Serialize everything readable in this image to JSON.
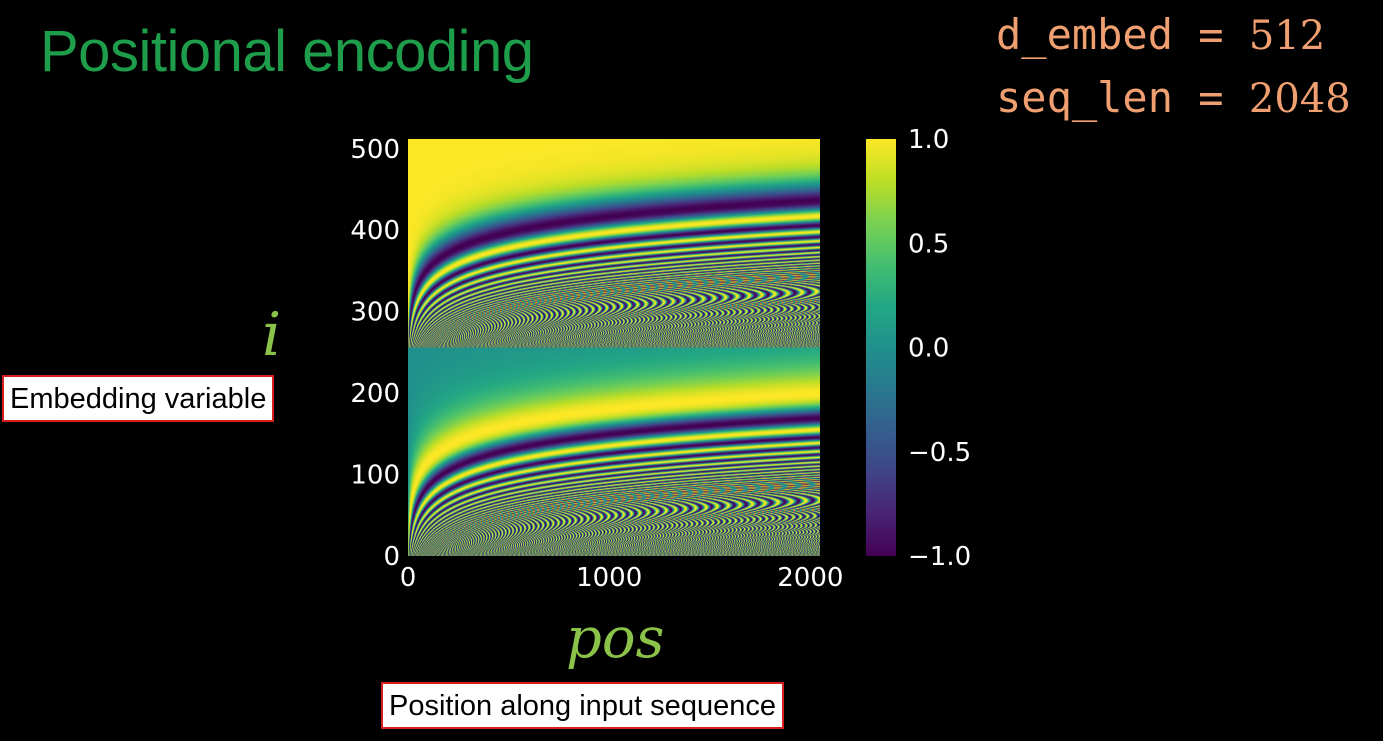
{
  "slide": {
    "title": "Positional encoding",
    "params": [
      {
        "name": "d_embed",
        "op": " = ",
        "value": "512"
      },
      {
        "name": "seq_len",
        "op": " = ",
        "value": "2048"
      }
    ],
    "y_symbol": "i",
    "y_caption": "Embedding variable",
    "x_symbol": "pos",
    "x_caption": "Position along input sequence"
  },
  "chart_data": {
    "type": "heatmap",
    "title": "",
    "xlabel": "",
    "ylabel": "",
    "xlim": [
      0,
      2048
    ],
    "ylim": [
      0,
      512
    ],
    "x_ticks": [
      {
        "value": 0,
        "label": "0"
      },
      {
        "value": 1000,
        "label": "1000"
      },
      {
        "value": 2000,
        "label": "2000"
      }
    ],
    "y_ticks": [
      {
        "value": 0,
        "label": "0"
      },
      {
        "value": 100,
        "label": "100"
      },
      {
        "value": 200,
        "label": "200"
      },
      {
        "value": 300,
        "label": "300"
      },
      {
        "value": 400,
        "label": "400"
      },
      {
        "value": 500,
        "label": "500"
      }
    ],
    "colorbar": {
      "range": [
        -1.0,
        1.0
      ],
      "colormap": "viridis",
      "ticks": [
        {
          "value": 1.0,
          "label": "1.0"
        },
        {
          "value": 0.5,
          "label": "0.5"
        },
        {
          "value": 0.0,
          "label": "0.0"
        },
        {
          "value": -0.5,
          "label": "−0.5"
        },
        {
          "value": -1.0,
          "label": "−1.0"
        }
      ]
    },
    "function": {
      "rows_0_to_255": "sin(pos / 10000^(2i/512))",
      "rows_256_to_511": "cos(pos / 10000^(2(i-256)/512))",
      "d_embed": 512,
      "seq_len": 2048
    },
    "colors": {
      "title": "#1e9e4a",
      "params": "#f0a070",
      "symbols": "#8bc34a",
      "box_border": "#d81f1f"
    }
  }
}
